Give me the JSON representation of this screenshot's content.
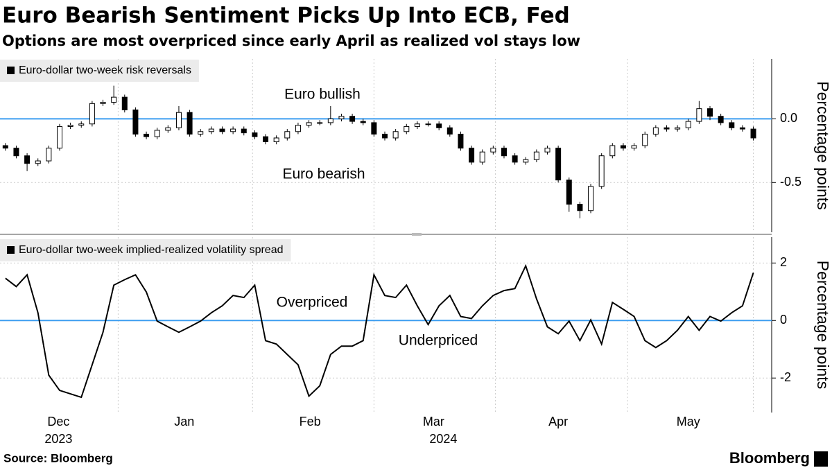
{
  "title": "Euro Bearish Sentiment Picks Up Into ECB, Fed",
  "subtitle": "Options are most overpriced since early April as realized vol stays low",
  "source": "Source: Bloomberg",
  "brand": "Bloomberg",
  "chart_data": [
    {
      "type": "candlestick",
      "ylabel": "Percentage points",
      "xlim": [
        -0.5,
        70.5
      ],
      "xgrid": [
        10.4,
        22.8,
        34.0,
        45.2,
        57.4,
        69.0
      ],
      "ylim": [
        -0.89,
        0.47
      ],
      "yticks": [
        {
          "value": 0,
          "label": "0.0"
        },
        -0.5
      ],
      "grid": true,
      "reference_line": {
        "value": 0,
        "color": "#3d9ef0"
      },
      "up_color": "#ffffff",
      "down_color": "#000000",
      "annotations": [
        {
          "text": "Euro bullish",
          "color": "#7dc92e"
        },
        {
          "text": "Euro bearish",
          "color": "#e8305a"
        }
      ],
      "series": [
        {
          "name": "Euro-dollar two-week risk reversals",
          "open": [
            -0.21,
            -0.23,
            -0.29,
            -0.35,
            -0.33,
            -0.23,
            -0.06,
            -0.05,
            -0.04,
            0.12,
            0.13,
            0.17,
            0.07,
            -0.12,
            -0.14,
            -0.09,
            -0.07,
            0.05,
            -0.12,
            -0.1,
            -0.08,
            -0.1,
            -0.08,
            -0.11,
            -0.14,
            -0.18,
            -0.15,
            -0.1,
            -0.05,
            -0.03,
            -0.03,
            0.0,
            0.02,
            -0.02,
            -0.03,
            -0.12,
            -0.15,
            -0.1,
            -0.06,
            -0.04,
            -0.04,
            -0.07,
            -0.12,
            -0.23,
            -0.34,
            -0.26,
            -0.23,
            -0.29,
            -0.34,
            -0.32,
            -0.26,
            -0.23,
            -0.48,
            -0.67,
            -0.72,
            -0.53,
            -0.29,
            -0.21,
            -0.23,
            -0.21,
            -0.12,
            -0.07,
            -0.08,
            -0.07,
            -0.02,
            0.08,
            0.02,
            -0.03,
            -0.07,
            -0.08
          ],
          "high": [
            -0.19,
            -0.21,
            -0.27,
            -0.31,
            -0.21,
            -0.04,
            -0.03,
            -0.02,
            0.14,
            0.15,
            0.26,
            0.19,
            0.09,
            -0.1,
            -0.07,
            -0.05,
            0.1,
            0.07,
            -0.08,
            -0.06,
            -0.06,
            -0.06,
            -0.06,
            -0.09,
            -0.12,
            -0.13,
            -0.08,
            -0.03,
            -0.01,
            -0.01,
            0.1,
            0.04,
            0.04,
            0.0,
            -0.01,
            -0.1,
            -0.08,
            -0.04,
            -0.02,
            -0.02,
            -0.02,
            -0.05,
            -0.1,
            -0.21,
            -0.24,
            -0.21,
            -0.21,
            -0.27,
            -0.3,
            -0.24,
            -0.21,
            -0.21,
            -0.46,
            -0.65,
            -0.51,
            -0.27,
            -0.19,
            -0.19,
            -0.19,
            -0.1,
            -0.05,
            -0.05,
            -0.05,
            0.0,
            0.14,
            0.1,
            0.04,
            -0.01,
            -0.05,
            -0.06
          ],
          "low": [
            -0.25,
            -0.31,
            -0.41,
            -0.37,
            -0.35,
            -0.25,
            -0.08,
            -0.07,
            -0.06,
            0.1,
            0.11,
            0.05,
            -0.14,
            -0.16,
            -0.16,
            -0.11,
            -0.09,
            -0.14,
            -0.14,
            -0.12,
            -0.12,
            -0.12,
            -0.13,
            -0.16,
            -0.2,
            -0.2,
            -0.17,
            -0.12,
            -0.07,
            -0.05,
            -0.05,
            -0.02,
            -0.04,
            -0.05,
            -0.14,
            -0.17,
            -0.17,
            -0.12,
            -0.08,
            -0.06,
            -0.09,
            -0.14,
            -0.25,
            -0.36,
            -0.36,
            -0.28,
            -0.31,
            -0.36,
            -0.36,
            -0.34,
            -0.28,
            -0.5,
            -0.73,
            -0.78,
            -0.74,
            -0.55,
            -0.31,
            -0.25,
            -0.25,
            -0.23,
            -0.14,
            -0.1,
            -0.1,
            -0.09,
            -0.04,
            -0.01,
            -0.05,
            -0.09,
            -0.1,
            -0.17
          ],
          "close": [
            -0.23,
            -0.29,
            -0.35,
            -0.33,
            -0.23,
            -0.06,
            -0.05,
            -0.04,
            0.12,
            0.13,
            0.17,
            0.07,
            -0.12,
            -0.14,
            -0.09,
            -0.07,
            0.05,
            -0.12,
            -0.1,
            -0.08,
            -0.1,
            -0.08,
            -0.11,
            -0.14,
            -0.18,
            -0.15,
            -0.1,
            -0.05,
            -0.03,
            -0.03,
            0.0,
            0.02,
            -0.02,
            -0.03,
            -0.12,
            -0.15,
            -0.1,
            -0.06,
            -0.04,
            -0.04,
            -0.07,
            -0.12,
            -0.23,
            -0.34,
            -0.26,
            -0.23,
            -0.29,
            -0.34,
            -0.32,
            -0.26,
            -0.23,
            -0.48,
            -0.67,
            -0.72,
            -0.53,
            -0.29,
            -0.21,
            -0.23,
            -0.21,
            -0.12,
            -0.07,
            -0.08,
            -0.07,
            -0.02,
            0.08,
            0.02,
            -0.03,
            -0.07,
            -0.08,
            -0.15
          ]
        }
      ]
    },
    {
      "type": "line",
      "ylabel": "Percentage points",
      "xlim": [
        -0.5,
        70.5
      ],
      "xgrid": [
        10.4,
        22.8,
        34.0,
        45.2,
        57.4,
        69.0
      ],
      "xticks": [
        {
          "value": 4.9,
          "label": "Dec"
        },
        {
          "value": 16.5,
          "label": "Jan"
        },
        {
          "value": 28.1,
          "label": "Feb"
        },
        {
          "value": 39.5,
          "label": "Mar"
        },
        {
          "value": 51.0,
          "label": "Apr"
        },
        {
          "value": 63.0,
          "label": "May"
        }
      ],
      "year_labels": [
        {
          "value": 4.9,
          "label": "2023"
        },
        {
          "value": 40.4,
          "label": "2024"
        }
      ],
      "ylim": [
        -3.2,
        2.9
      ],
      "yticks": [
        2,
        0,
        -2
      ],
      "grid": true,
      "reference_line": {
        "value": 0,
        "color": "#3d9ef0"
      },
      "annotations": [
        {
          "text": "Overpriced",
          "color": "#f0781e"
        },
        {
          "text": "Underpriced",
          "color": "#f0781e"
        }
      ],
      "series": [
        {
          "name": "Euro-dollar two-week implied-realized volatility spread",
          "color": "#000000",
          "values": [
            1.47,
            1.18,
            1.59,
            0.27,
            -1.9,
            -2.43,
            -2.55,
            -2.67,
            -1.54,
            -0.41,
            1.23,
            1.42,
            1.59,
            0.99,
            -0.02,
            -0.22,
            -0.41,
            -0.22,
            -0.02,
            0.27,
            0.51,
            0.87,
            0.8,
            1.23,
            -0.7,
            -0.82,
            -1.18,
            -1.54,
            -2.63,
            -2.27,
            -1.18,
            -0.89,
            -0.89,
            -0.7,
            1.59,
            0.87,
            0.8,
            1.23,
            0.51,
            -0.14,
            0.51,
            0.87,
            0.14,
            0.07,
            0.51,
            0.87,
            1.04,
            1.11,
            1.9,
            0.75,
            -0.22,
            -0.46,
            -0.02,
            -0.7,
            0.02,
            -0.82,
            0.63,
            0.39,
            0.14,
            -0.7,
            -0.94,
            -0.7,
            -0.34,
            0.14,
            -0.34,
            0.14,
            -0.02,
            0.27,
            0.51,
            1.66
          ]
        }
      ]
    }
  ]
}
